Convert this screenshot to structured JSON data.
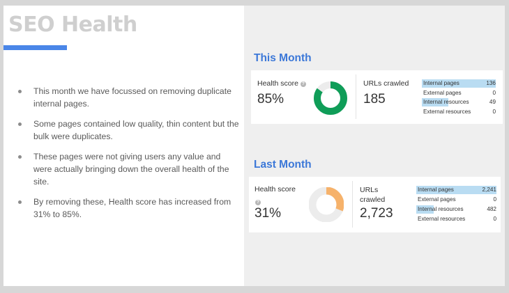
{
  "slide": {
    "title": "SEO Health",
    "bullets": [
      "This month we have focussed on removing duplicate internal pages.",
      "Some  pages contained low quality, thin content but the bulk were duplicates.",
      "These pages were not giving users any value and were actually bringing down the overall health of the site.",
      "By removing these, Health score has  increased from 31% to 85%."
    ]
  },
  "this_month": {
    "heading": "This Month",
    "health_label": "Health score",
    "health_value": "85%",
    "health_fraction": 0.85,
    "urls_label": "URLs crawled",
    "urls_value": "185",
    "breakdown": [
      {
        "label": "Internal pages",
        "value": "136",
        "fill_fraction": 1.0
      },
      {
        "label": "External pages",
        "value": "0",
        "fill_fraction": 0
      },
      {
        "label": "Internal resources",
        "value": "49",
        "fill_fraction": 0.36
      },
      {
        "label": "External resources",
        "value": "0",
        "fill_fraction": 0
      }
    ]
  },
  "last_month": {
    "heading": "Last Month",
    "health_label": "Health score",
    "health_value": "31%",
    "health_fraction": 0.31,
    "urls_label": "URLs crawled",
    "urls_value": "2,723",
    "breakdown": [
      {
        "label": "Internal pages",
        "value": "2,241",
        "fill_fraction": 1.0
      },
      {
        "label": "External pages",
        "value": "0",
        "fill_fraction": 0
      },
      {
        "label": "Internal resources",
        "value": "482",
        "fill_fraction": 0.22
      },
      {
        "label": "External resources",
        "value": "0",
        "fill_fraction": 0
      }
    ]
  },
  "colors": {
    "accent_blue": "#4a86e8",
    "heading_blue": "#3c78d8",
    "donut_good": "#0f9d58",
    "donut_fair": "#f6b26b",
    "donut_track": "#ececec",
    "bar_fill": "#b9dcf2"
  },
  "icons": {
    "help": "question-circle-icon"
  }
}
